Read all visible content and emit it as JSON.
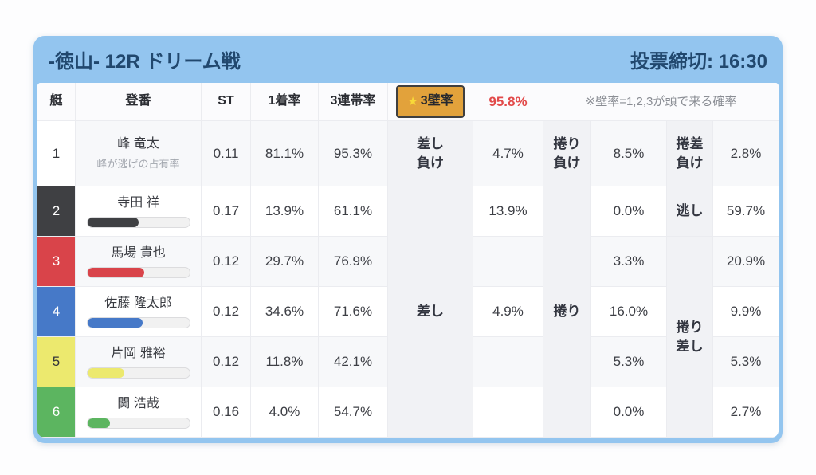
{
  "page": {
    "title": "-徳山- 12R ドリーム戦",
    "deadline_label": "投票締切: 16:30"
  },
  "colors": {
    "frame_blue": "#93c5ef",
    "title_navy": "#21486e",
    "wall_button_bg": "#e2a23b",
    "wall_button_border": "#3f3f3f",
    "wall_value_red": "#e24a4a",
    "boat_colors": [
      "#ffffff",
      "#3f4043",
      "#d9444a",
      "#4679c8",
      "#ece96e",
      "#5cb560"
    ]
  },
  "table": {
    "headers": {
      "boat": "艇",
      "racer": "登番",
      "st": "ST",
      "win1": "1着率",
      "top3": "3連帯率"
    },
    "wall": {
      "star": "★",
      "label": "3壁率",
      "value": "95.8%",
      "note": "※壁率=1,2,3が頭で来る確率"
    },
    "span_labels": {
      "sashi": "差し",
      "makuri": "捲り",
      "nigashi": "逃し",
      "makurizashi_line1": "捲り",
      "makurizashi_line2": "差し"
    },
    "rows": [
      {
        "boat": "1",
        "boat_color": "#ffffff",
        "name": "峰 竜太",
        "subtitle": "峰が逃げの占有率",
        "st": "0.11",
        "win1": "81.1%",
        "top3": "95.3%",
        "label1_line1": "差し",
        "label1_line2": "負け",
        "v1": "4.7%",
        "label2_line1": "捲り",
        "label2_line2": "負け",
        "v2": "8.5%",
        "label3_line1": "捲差",
        "label3_line2": "負け",
        "v3": "2.8%"
      },
      {
        "boat": "2",
        "boat_color": "#3f4043",
        "name": "寺田 祥",
        "bar": {
          "width": "50%",
          "color": "#3f4043"
        },
        "st": "0.17",
        "win1": "13.9%",
        "top3": "61.1%",
        "v1": "13.9%",
        "v2": "0.0%",
        "v3": "59.7%"
      },
      {
        "boat": "3",
        "boat_color": "#d9444a",
        "name": "馬場 貴也",
        "bar": {
          "width": "56%",
          "color": "#d9444a"
        },
        "st": "0.12",
        "win1": "29.7%",
        "top3": "76.9%",
        "v1": "",
        "v2": "3.3%",
        "v3": "20.9%"
      },
      {
        "boat": "4",
        "boat_color": "#4679c8",
        "name": "佐藤 隆太郎",
        "bar": {
          "width": "54%",
          "color": "#4679c8"
        },
        "st": "0.12",
        "win1": "34.6%",
        "top3": "71.6%",
        "v1": "4.9%",
        "v2": "16.0%",
        "v3": "9.9%"
      },
      {
        "boat": "5",
        "boat_color": "#ece96e",
        "name": "片岡 雅裕",
        "bar": {
          "width": "36%",
          "color": "#ece96e"
        },
        "st": "0.12",
        "win1": "11.8%",
        "top3": "42.1%",
        "v1": "",
        "v2": "5.3%",
        "v3": "5.3%"
      },
      {
        "boat": "6",
        "boat_color": "#5cb560",
        "name": "関 浩哉",
        "bar": {
          "width": "22%",
          "color": "#5cb560"
        },
        "st": "0.16",
        "win1": "4.0%",
        "top3": "54.7%",
        "v1": "",
        "v2": "0.0%",
        "v3": "2.7%"
      }
    ]
  }
}
